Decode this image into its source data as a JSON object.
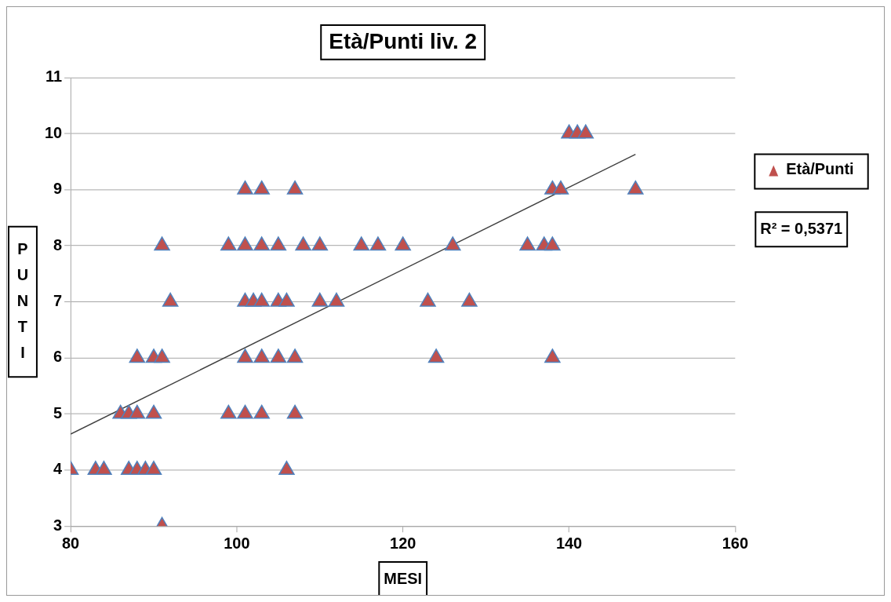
{
  "chart_data": {
    "type": "scatter",
    "title": "Età/Punti liv. 2",
    "xlabel": "MESI",
    "ylabel": "PUNTI",
    "xlim": [
      80,
      160
    ],
    "xticks": [
      80,
      100,
      120,
      140,
      160
    ],
    "ylim": [
      3,
      11
    ],
    "yticks": [
      3,
      4,
      5,
      6,
      7,
      8,
      9,
      10,
      11
    ],
    "grid": "y",
    "legend": "right",
    "marker": "triangle",
    "annotations": [
      "R² = 0,5371"
    ],
    "series": [
      {
        "name": "Età/Punti",
        "color": "#c0504d",
        "x": [
          80,
          83,
          84,
          87,
          88,
          89,
          90,
          106,
          91,
          86,
          87,
          88,
          90,
          99,
          101,
          103,
          107,
          88,
          90,
          91,
          101,
          103,
          105,
          107,
          124,
          138,
          92,
          101,
          102,
          103,
          105,
          106,
          110,
          112,
          123,
          128,
          91,
          99,
          101,
          103,
          105,
          108,
          110,
          115,
          117,
          120,
          126,
          135,
          137,
          138,
          101,
          103,
          107,
          138,
          139,
          148,
          140,
          141,
          142
        ],
        "values": [
          4,
          4,
          4,
          4,
          4,
          4,
          4,
          4,
          3,
          5,
          5,
          5,
          5,
          5,
          5,
          5,
          5,
          6,
          6,
          6,
          6,
          6,
          6,
          6,
          6,
          6,
          7,
          7,
          7,
          7,
          7,
          7,
          7,
          7,
          7,
          7,
          8,
          8,
          8,
          8,
          8,
          8,
          8,
          8,
          8,
          8,
          8,
          8,
          8,
          8,
          9,
          9,
          9,
          9,
          9,
          9,
          10,
          10,
          10
        ]
      },
      {
        "type": "line",
        "color": "#404040",
        "marker": "none",
        "x": [
          80,
          148
        ],
        "values": [
          4.64,
          9.63
        ]
      }
    ]
  }
}
